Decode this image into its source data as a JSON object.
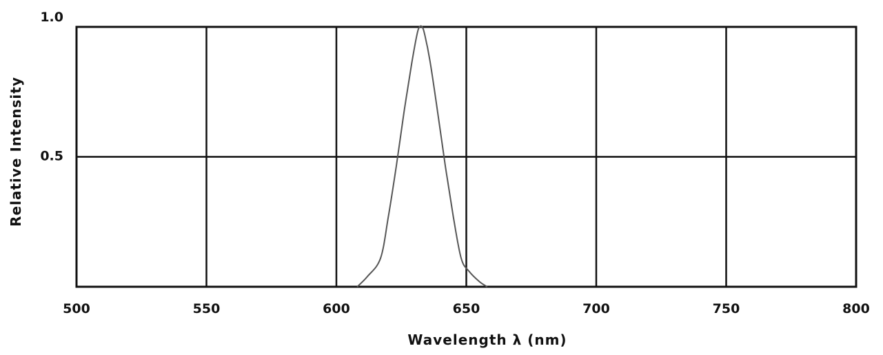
{
  "chart_data": {
    "type": "line",
    "title": "",
    "xlabel": "Wavelength λ (nm)",
    "ylabel": "Relative Intensity",
    "xlim": [
      500,
      800
    ],
    "ylim": [
      0,
      1.0
    ],
    "x_ticks": [
      "500",
      "550",
      "600",
      "650",
      "700",
      "750",
      "800"
    ],
    "y_ticks": [
      "0.5",
      "1.0"
    ],
    "grid": true,
    "series": [
      {
        "color": "#555555",
        "x": [
          608,
          612,
          617,
          620,
          623,
          626,
          629,
          631,
          632,
          633,
          634,
          636,
          639,
          642,
          645,
          648,
          651,
          655,
          658
        ],
        "y": [
          0.0,
          0.04,
          0.11,
          0.27,
          0.46,
          0.67,
          0.86,
          0.97,
          1.0,
          1.0,
          0.97,
          0.87,
          0.67,
          0.46,
          0.27,
          0.11,
          0.06,
          0.02,
          0.0
        ]
      }
    ]
  }
}
